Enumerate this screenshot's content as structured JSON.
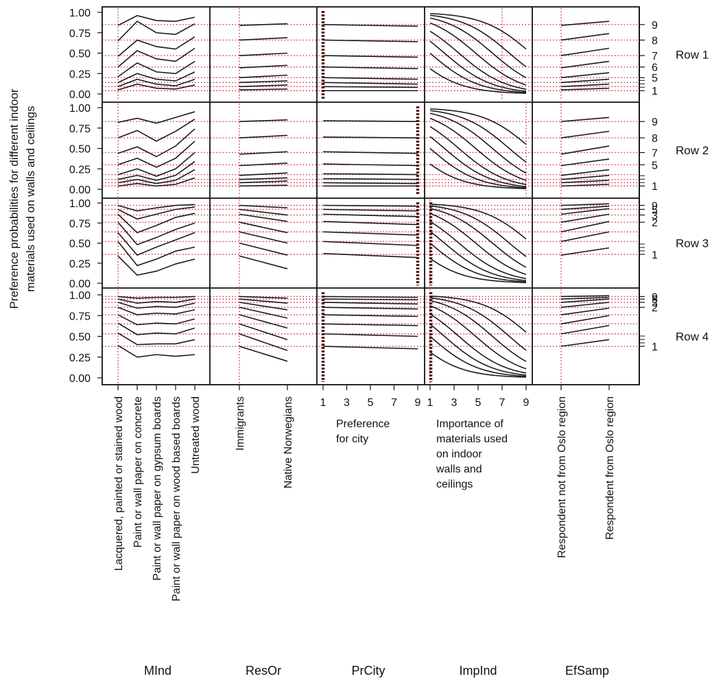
{
  "figure": {
    "ylabel": [
      "Preference probabilities for different  indoor",
      "materials used on walls and ceilings"
    ],
    "y_ticks": [
      "1.00",
      "0.75",
      "0.50",
      "0.25",
      "0.00"
    ],
    "row_labels": [
      "Row 1",
      "Row 2",
      "Row 3",
      "Row 4"
    ],
    "right_ticks": [
      [
        "9",
        "8",
        "7",
        "6",
        "5",
        "1"
      ],
      [
        "9",
        "8",
        "7",
        "5",
        "1"
      ],
      [
        "9",
        "5",
        "3",
        "2",
        "1"
      ],
      [
        "9",
        "5",
        "3",
        "2",
        "1"
      ]
    ],
    "column_names": [
      "MInd",
      "ResOr",
      "PrCity",
      "ImpInd",
      "EfSamp"
    ],
    "category_labels": {
      "MInd": [
        "Lacquered, painted or stained wood",
        "Paint or wall paper on concrete",
        "Paint or wall paper on gypsum boards",
        "Paint or wall paper on wood based boards",
        "Untreated wood"
      ],
      "ResOr": [
        "Immigrants",
        "Native Norwegians"
      ],
      "EfSamp": [
        "Respondent  not from Oslo region",
        "Respondent from Oslo region"
      ]
    },
    "numeric_ticks": [
      "1",
      "3",
      "5",
      "7",
      "9"
    ],
    "prcity_axis_title": [
      "Preference",
      "for city"
    ],
    "impind_axis_title": [
      "Importance of",
      "materials used",
      "on indoor",
      "walls and",
      "ceilings"
    ],
    "colors": {
      "curve": "#1a1a1a",
      "reference": "#d7263d",
      "rug": "#5a1a1a"
    }
  },
  "chart_data": {
    "type": "line",
    "description_rows": [
      "Row 1",
      "Row 2",
      "Row 3",
      "Row 4"
    ],
    "ylim": [
      0,
      1
    ],
    "grid": "dotted red reference lines at observed values",
    "rows": [
      {
        "label": "Row 1",
        "reference_levels": [
          0.85,
          0.66,
          0.47,
          0.33,
          0.2,
          0.14,
          0.09,
          0.04
        ],
        "MInd": [
          [
            0.84,
            0.96,
            0.9,
            0.89,
            0.94
          ],
          [
            0.65,
            0.89,
            0.75,
            0.73,
            0.86
          ],
          [
            0.46,
            0.66,
            0.58,
            0.55,
            0.7
          ],
          [
            0.33,
            0.53,
            0.43,
            0.4,
            0.56
          ],
          [
            0.21,
            0.38,
            0.27,
            0.25,
            0.4
          ],
          [
            0.14,
            0.25,
            0.18,
            0.16,
            0.27
          ],
          [
            0.09,
            0.18,
            0.12,
            0.1,
            0.18
          ],
          [
            0.05,
            0.12,
            0.07,
            0.06,
            0.11
          ]
        ],
        "ResOr": [
          [
            0.84,
            0.86
          ],
          [
            0.66,
            0.69
          ],
          [
            0.47,
            0.5
          ],
          [
            0.32,
            0.35
          ],
          [
            0.2,
            0.23
          ],
          [
            0.14,
            0.16
          ],
          [
            0.09,
            0.11
          ],
          [
            0.05,
            0.06
          ]
        ],
        "PrCity": [
          [
            0.85,
            0.83
          ],
          [
            0.66,
            0.64
          ],
          [
            0.47,
            0.45
          ],
          [
            0.33,
            0.31
          ],
          [
            0.2,
            0.18
          ],
          [
            0.14,
            0.12
          ],
          [
            0.09,
            0.08
          ],
          [
            0.04,
            0.04
          ]
        ],
        "ImpInd_ref": 7,
        "EfSamp": [
          [
            0.84,
            0.89
          ],
          [
            0.66,
            0.74
          ],
          [
            0.47,
            0.56
          ],
          [
            0.32,
            0.4
          ],
          [
            0.2,
            0.26
          ],
          [
            0.14,
            0.18
          ],
          [
            0.09,
            0.12
          ],
          [
            0.05,
            0.07
          ]
        ],
        "PrCity_rug": 1
      },
      {
        "label": "Row 2",
        "reference_levels": [
          0.83,
          0.63,
          0.45,
          0.3,
          0.18,
          0.12,
          0.08,
          0.04
        ],
        "MInd": [
          [
            0.82,
            0.87,
            0.81,
            0.88,
            0.95
          ],
          [
            0.63,
            0.72,
            0.59,
            0.71,
            0.86
          ],
          [
            0.44,
            0.52,
            0.4,
            0.53,
            0.74
          ],
          [
            0.3,
            0.38,
            0.27,
            0.38,
            0.59
          ],
          [
            0.18,
            0.25,
            0.16,
            0.25,
            0.45
          ],
          [
            0.12,
            0.17,
            0.11,
            0.17,
            0.34
          ],
          [
            0.08,
            0.12,
            0.07,
            0.11,
            0.24
          ],
          [
            0.04,
            0.07,
            0.04,
            0.06,
            0.14
          ]
        ],
        "ResOr": [
          [
            0.83,
            0.85
          ],
          [
            0.63,
            0.66
          ],
          [
            0.43,
            0.46
          ],
          [
            0.29,
            0.32
          ],
          [
            0.17,
            0.2
          ],
          [
            0.12,
            0.14
          ],
          [
            0.08,
            0.1
          ],
          [
            0.04,
            0.05
          ]
        ],
        "PrCity": [
          [
            0.84,
            0.83
          ],
          [
            0.64,
            0.63
          ],
          [
            0.46,
            0.44
          ],
          [
            0.31,
            0.29
          ],
          [
            0.19,
            0.18
          ],
          [
            0.13,
            0.12
          ],
          [
            0.08,
            0.07
          ],
          [
            0.04,
            0.04
          ]
        ],
        "ImpInd_ref": 9,
        "EfSamp": [
          [
            0.83,
            0.88
          ],
          [
            0.63,
            0.71
          ],
          [
            0.43,
            0.53
          ],
          [
            0.29,
            0.37
          ],
          [
            0.17,
            0.24
          ],
          [
            0.12,
            0.17
          ],
          [
            0.08,
            0.11
          ],
          [
            0.04,
            0.06
          ]
        ],
        "PrCity_rug": 9
      },
      {
        "label": "Row 3",
        "reference_levels": [
          0.97,
          0.92,
          0.85,
          0.76,
          0.64,
          0.52,
          0.36
        ],
        "MInd": [
          [
            0.97,
            0.9,
            0.94,
            0.97,
            0.98
          ],
          [
            0.92,
            0.8,
            0.86,
            0.92,
            0.95
          ],
          [
            0.86,
            0.63,
            0.72,
            0.82,
            0.87
          ],
          [
            0.76,
            0.48,
            0.57,
            0.67,
            0.75
          ],
          [
            0.63,
            0.35,
            0.45,
            0.54,
            0.63
          ],
          [
            0.52,
            0.22,
            0.3,
            0.4,
            0.45
          ],
          [
            0.34,
            0.1,
            0.15,
            0.24,
            0.3
          ]
        ],
        "ResOr": [
          [
            0.97,
            0.94
          ],
          [
            0.92,
            0.85
          ],
          [
            0.86,
            0.77
          ],
          [
            0.76,
            0.63
          ],
          [
            0.64,
            0.5
          ],
          [
            0.5,
            0.35
          ],
          [
            0.34,
            0.18
          ]
        ],
        "PrCity": [
          [
            0.97,
            0.96
          ],
          [
            0.92,
            0.9
          ],
          [
            0.86,
            0.83
          ],
          [
            0.77,
            0.73
          ],
          [
            0.64,
            0.6
          ],
          [
            0.52,
            0.47
          ],
          [
            0.37,
            0.32
          ]
        ],
        "ImpInd_ref": 1,
        "EfSamp": [
          [
            0.97,
            0.99
          ],
          [
            0.92,
            0.96
          ],
          [
            0.86,
            0.93
          ],
          [
            0.76,
            0.86
          ],
          [
            0.64,
            0.77
          ],
          [
            0.52,
            0.64
          ],
          [
            0.35,
            0.44
          ]
        ],
        "PrCity_rug": 9
      },
      {
        "label": "Row 4",
        "reference_levels": [
          0.98,
          0.95,
          0.91,
          0.85,
          0.76,
          0.65,
          0.53,
          0.38
        ],
        "MInd": [
          [
            0.98,
            0.96,
            0.97,
            0.97,
            0.98
          ],
          [
            0.95,
            0.9,
            0.92,
            0.91,
            0.95
          ],
          [
            0.91,
            0.84,
            0.86,
            0.85,
            0.9
          ],
          [
            0.85,
            0.76,
            0.78,
            0.77,
            0.82
          ],
          [
            0.76,
            0.64,
            0.66,
            0.65,
            0.71
          ],
          [
            0.66,
            0.52,
            0.54,
            0.53,
            0.6
          ],
          [
            0.54,
            0.4,
            0.41,
            0.41,
            0.46
          ],
          [
            0.39,
            0.25,
            0.28,
            0.26,
            0.28
          ]
        ],
        "ResOr": [
          [
            0.98,
            0.96
          ],
          [
            0.95,
            0.9
          ],
          [
            0.91,
            0.82
          ],
          [
            0.85,
            0.72
          ],
          [
            0.76,
            0.6
          ],
          [
            0.65,
            0.46
          ],
          [
            0.53,
            0.33
          ],
          [
            0.38,
            0.2
          ]
        ],
        "PrCity": [
          [
            0.98,
            0.97
          ],
          [
            0.95,
            0.94
          ],
          [
            0.91,
            0.89
          ],
          [
            0.85,
            0.83
          ],
          [
            0.76,
            0.74
          ],
          [
            0.65,
            0.63
          ],
          [
            0.53,
            0.5
          ],
          [
            0.38,
            0.35
          ]
        ],
        "ImpInd_ref": 1,
        "EfSamp": [
          [
            0.98,
            0.99
          ],
          [
            0.95,
            0.97
          ],
          [
            0.91,
            0.95
          ],
          [
            0.85,
            0.91
          ],
          [
            0.76,
            0.84
          ],
          [
            0.65,
            0.75
          ],
          [
            0.53,
            0.63
          ],
          [
            0.38,
            0.46
          ]
        ],
        "PrCity_rug": 1
      }
    ],
    "ImpInd_curves": [
      {
        "b0": 4.2,
        "b1": 0.5
      },
      {
        "b0": 3.3,
        "b1": 0.5
      },
      {
        "b0": 2.6,
        "b1": 0.5
      },
      {
        "b0": 1.9,
        "b1": 0.5
      },
      {
        "b0": 1.2,
        "b1": 0.5
      },
      {
        "b0": 0.6,
        "b1": 0.5
      },
      {
        "b0": 0.0,
        "b1": 0.5
      },
      {
        "b0": -0.8,
        "b1": 0.5
      }
    ]
  }
}
